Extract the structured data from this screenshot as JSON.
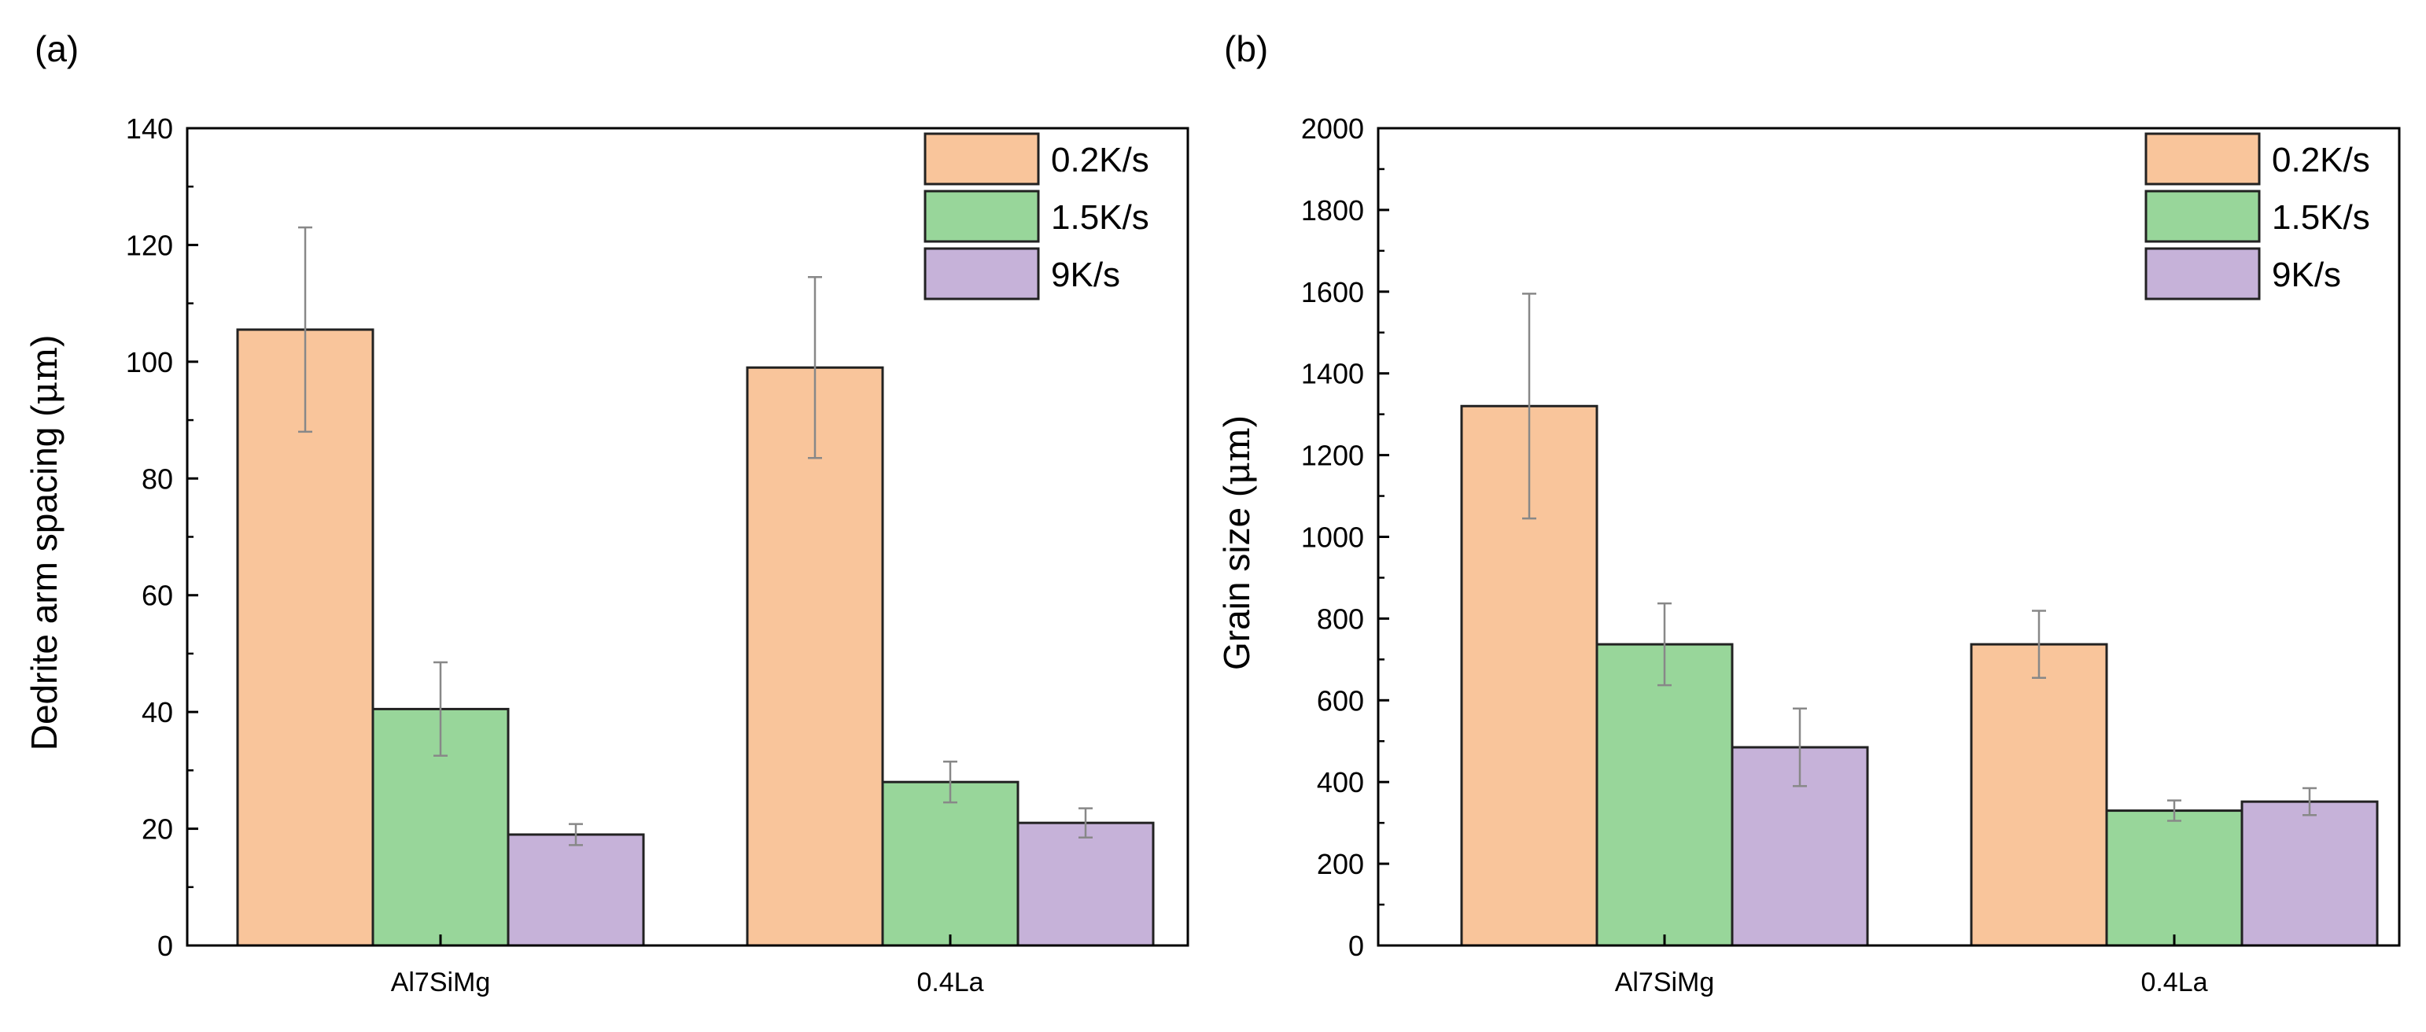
{
  "colors": {
    "series_0": "#f9c59b",
    "series_1": "#98d69a",
    "series_2": "#c6b2d9",
    "edge": "#222222",
    "error_bar": "#888888",
    "axis": "#000000"
  },
  "chart_data": [
    {
      "type": "bar",
      "panel_label": "(a)",
      "title": "",
      "xlabel": "",
      "ylabel": "Dedrite arm spacing (μm)",
      "ylabel_main": "Dedrite arm spacing (",
      "ylabel_unit": "μm",
      "ylabel_close": ")",
      "categories": [
        "Al7SiMg",
        "0.4La"
      ],
      "ylim": [
        0,
        140
      ],
      "yticks": [
        0,
        20,
        40,
        60,
        80,
        100,
        120,
        140
      ],
      "ytick_labels": [
        "0",
        "20",
        "40",
        "60",
        "80",
        "100",
        "120",
        "140"
      ],
      "grid": false,
      "legend_position": "top-right",
      "series": [
        {
          "name": "0.2K/s",
          "values": [
            105.5,
            99
          ],
          "errors": [
            17.5,
            15.5
          ]
        },
        {
          "name": "1.5K/s",
          "values": [
            40.5,
            28
          ],
          "errors": [
            8,
            3.5
          ]
        },
        {
          "name": "9K/s",
          "values": [
            19,
            21
          ],
          "errors": [
            1.8,
            2.5
          ]
        }
      ]
    },
    {
      "type": "bar",
      "panel_label": "(b)",
      "title": "",
      "xlabel": "",
      "ylabel": "Grain size (μm)",
      "ylabel_main": "Grain size (",
      "ylabel_unit": "μm",
      "ylabel_close": ")",
      "categories": [
        "Al7SiMg",
        "0.4La"
      ],
      "ylim": [
        0,
        2000
      ],
      "yticks": [
        0,
        200,
        400,
        600,
        800,
        1000,
        1200,
        1400,
        1600,
        1800,
        2000
      ],
      "ytick_labels": [
        "0",
        "200",
        "400",
        "600",
        "800",
        "1000",
        "1200",
        "1400",
        "1600",
        "1800",
        "2000"
      ],
      "grid": false,
      "legend_position": "top-right",
      "series": [
        {
          "name": "0.2K/s",
          "values": [
            1320,
            737
          ],
          "errors": [
            275,
            82
          ]
        },
        {
          "name": "1.5K/s",
          "values": [
            737,
            330
          ],
          "errors": [
            100,
            25
          ]
        },
        {
          "name": "9K/s",
          "values": [
            485,
            352
          ],
          "errors": [
            95,
            33
          ]
        }
      ]
    }
  ]
}
